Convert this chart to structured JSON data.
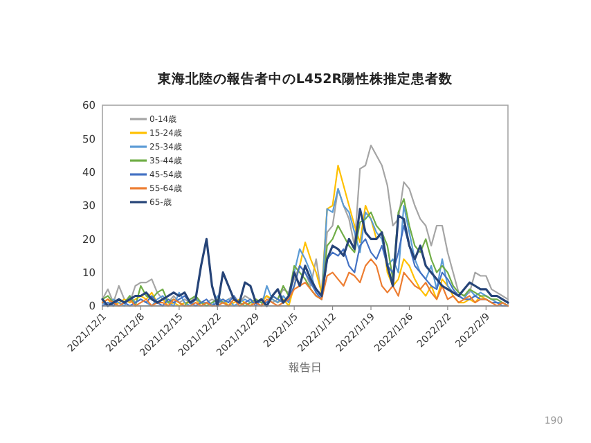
{
  "chart_data": {
    "type": "line",
    "title": "東海北陸の報告者中のL452R陽性株推定患者数",
    "xlabel": "報告日",
    "annotations": [
      "190"
    ],
    "legend": "top left",
    "grid": false,
    "marker": "none",
    "line_style": "solid",
    "x": [
      "2021-12-01",
      "2021-12-02",
      "2021-12-03",
      "2021-12-04",
      "2021-12-05",
      "2021-12-06",
      "2021-12-07",
      "2021-12-08",
      "2021-12-09",
      "2021-12-10",
      "2021-12-11",
      "2021-12-12",
      "2021-12-13",
      "2021-12-14",
      "2021-12-15",
      "2021-12-16",
      "2021-12-17",
      "2021-12-18",
      "2021-12-19",
      "2021-12-20",
      "2021-12-21",
      "2021-12-22",
      "2021-12-23",
      "2021-12-24",
      "2021-12-25",
      "2021-12-26",
      "2021-12-27",
      "2021-12-28",
      "2021-12-29",
      "2021-12-30",
      "2021-12-31",
      "2022-01-01",
      "2022-01-02",
      "2022-01-03",
      "2022-01-04",
      "2022-01-05",
      "2022-01-06",
      "2022-01-07",
      "2022-01-08",
      "2022-01-09",
      "2022-01-10",
      "2022-01-11",
      "2022-01-12",
      "2022-01-13",
      "2022-01-14",
      "2022-01-15",
      "2022-01-16",
      "2022-01-17",
      "2022-01-18",
      "2022-01-19",
      "2022-01-20",
      "2022-01-21",
      "2022-01-22",
      "2022-01-23",
      "2022-01-24",
      "2022-01-25",
      "2022-01-26",
      "2022-01-27",
      "2022-01-28",
      "2022-01-29",
      "2022-01-30",
      "2022-01-31",
      "2022-02-01",
      "2022-02-02",
      "2022-02-03",
      "2022-02-04",
      "2022-02-05",
      "2022-02-06",
      "2022-02-07",
      "2022-02-08",
      "2022-02-09",
      "2022-02-10",
      "2022-02-11",
      "2022-02-12",
      "2022-02-13"
    ],
    "xlim": [
      "2021-12-01",
      "2022-02-13"
    ],
    "xticks": [
      {
        "value": "2021-12-01",
        "label": "2021/12/1"
      },
      {
        "value": "2021-12-08",
        "label": "2021/12/8"
      },
      {
        "value": "2021-12-15",
        "label": "2021/12/15"
      },
      {
        "value": "2021-12-22",
        "label": "2021/12/22"
      },
      {
        "value": "2021-12-29",
        "label": "2021/12/29"
      },
      {
        "value": "2022-01-05",
        "label": "2022/1/5"
      },
      {
        "value": "2022-01-12",
        "label": "2022/1/12"
      },
      {
        "value": "2022-01-19",
        "label": "2022/1/19"
      },
      {
        "value": "2022-01-26",
        "label": "2022/1/26"
      },
      {
        "value": "2022-02-02",
        "label": "2022/2/2"
      },
      {
        "value": "2022-02-09",
        "label": "2022/2/9"
      }
    ],
    "ylim": [
      0,
      60
    ],
    "yticks": [
      0,
      10,
      20,
      30,
      40,
      50,
      60
    ],
    "series": [
      {
        "name": "0-14歳",
        "color": "#a5a5a5",
        "values": [
          2,
          5,
          1,
          6,
          2,
          1,
          6,
          7,
          7,
          8,
          4,
          2,
          1,
          3,
          1,
          2,
          1,
          3,
          1,
          1,
          2,
          1,
          1,
          2,
          3,
          1,
          3,
          2,
          1,
          2,
          3,
          1,
          2,
          5,
          4,
          8,
          12,
          10,
          6,
          14,
          3,
          22,
          24,
          35,
          30,
          26,
          18,
          41,
          42,
          48,
          45,
          42,
          36,
          24,
          26,
          37,
          35,
          30,
          26,
          24,
          18,
          24,
          24,
          16,
          10,
          4,
          3,
          4,
          10,
          9,
          9,
          5,
          4,
          3,
          2
        ]
      },
      {
        "name": "15-24歳",
        "color": "#ffc000",
        "values": [
          1,
          2,
          0,
          1,
          2,
          1,
          2,
          3,
          2,
          4,
          1,
          2,
          0,
          1,
          0,
          1,
          1,
          2,
          0,
          1,
          0,
          1,
          2,
          0,
          1,
          2,
          1,
          0,
          2,
          1,
          3,
          2,
          1,
          2,
          0,
          6,
          12,
          19,
          14,
          10,
          4,
          29,
          30,
          42,
          36,
          30,
          24,
          19,
          30,
          26,
          20,
          22,
          10,
          6,
          8,
          14,
          12,
          8,
          5,
          3,
          6,
          2,
          8,
          6,
          3,
          1,
          1,
          2,
          1,
          3,
          2,
          1,
          null,
          null,
          null
        ]
      },
      {
        "name": "25-34歳",
        "color": "#5b9bd5",
        "values": [
          1,
          0,
          2,
          1,
          0,
          3,
          1,
          2,
          1,
          0,
          2,
          3,
          1,
          0,
          4,
          1,
          0,
          2,
          1,
          1,
          0,
          3,
          1,
          2,
          0,
          1,
          2,
          1,
          1,
          0,
          6,
          2,
          1,
          3,
          1,
          10,
          17,
          14,
          10,
          4,
          2,
          29,
          28,
          35,
          30,
          28,
          22,
          16,
          28,
          26,
          22,
          20,
          12,
          14,
          10,
          30,
          22,
          14,
          10,
          8,
          12,
          5,
          14,
          6,
          4,
          3,
          2,
          5,
          3,
          4,
          3,
          2,
          1,
          1,
          0
        ]
      },
      {
        "name": "35-44歳",
        "color": "#70ad47",
        "values": [
          2,
          3,
          1,
          2,
          1,
          3,
          0,
          6,
          3,
          2,
          4,
          5,
          1,
          2,
          1,
          0,
          2,
          3,
          1,
          0,
          1,
          2,
          1,
          0,
          2,
          1,
          0,
          1,
          2,
          1,
          0,
          3,
          2,
          6,
          3,
          12,
          10,
          8,
          5,
          3,
          2,
          18,
          20,
          24,
          21,
          18,
          16,
          25,
          26,
          28,
          24,
          22,
          18,
          8,
          28,
          32,
          24,
          18,
          16,
          20,
          14,
          10,
          12,
          10,
          6,
          4,
          3,
          5,
          4,
          3,
          3,
          2,
          2,
          1,
          0
        ]
      },
      {
        "name": "45-54歳",
        "color": "#4472c4",
        "values": [
          0,
          1,
          0,
          2,
          1,
          0,
          1,
          2,
          1,
          3,
          1,
          0,
          2,
          1,
          2,
          3,
          1,
          0,
          1,
          2,
          0,
          1,
          2,
          1,
          3,
          0,
          1,
          2,
          0,
          2,
          1,
          3,
          2,
          1,
          2,
          6,
          12,
          10,
          7,
          4,
          2,
          14,
          16,
          15,
          17,
          12,
          10,
          18,
          20,
          16,
          14,
          18,
          12,
          10,
          16,
          24,
          18,
          12,
          10,
          8,
          6,
          5,
          10,
          8,
          5,
          3,
          2,
          2,
          3,
          2,
          2,
          1,
          1,
          0,
          0
        ]
      },
      {
        "name": "55-64歳",
        "color": "#ed7d31",
        "values": [
          1,
          2,
          1,
          0,
          1,
          2,
          0,
          1,
          2,
          0,
          1,
          1,
          0,
          2,
          1,
          0,
          0,
          1,
          0,
          1,
          0,
          0,
          1,
          0,
          2,
          0,
          1,
          0,
          1,
          0,
          2,
          1,
          0,
          1,
          2,
          5,
          6,
          7,
          5,
          3,
          2,
          9,
          10,
          8,
          6,
          10,
          9,
          7,
          12,
          14,
          12,
          6,
          4,
          6,
          3,
          10,
          8,
          6,
          5,
          7,
          4,
          2,
          6,
          2,
          3,
          1,
          2,
          3,
          1,
          2,
          2,
          1,
          0,
          1,
          0
        ]
      },
      {
        "name": "65-歳",
        "color": "#264478",
        "values": [
          2,
          0,
          1,
          2,
          1,
          2,
          3,
          3,
          4,
          2,
          1,
          2,
          3,
          4,
          3,
          4,
          1,
          2,
          12,
          20,
          6,
          0,
          10,
          6,
          2,
          1,
          7,
          6,
          1,
          2,
          0,
          3,
          5,
          1,
          3,
          10,
          6,
          12,
          8,
          5,
          3,
          14,
          18,
          17,
          15,
          20,
          17,
          29,
          22,
          20,
          20,
          22,
          12,
          6,
          27,
          26,
          18,
          14,
          18,
          12,
          10,
          8,
          6,
          5,
          4,
          3,
          5,
          7,
          6,
          5,
          5,
          3,
          3,
          2,
          1
        ]
      }
    ]
  }
}
